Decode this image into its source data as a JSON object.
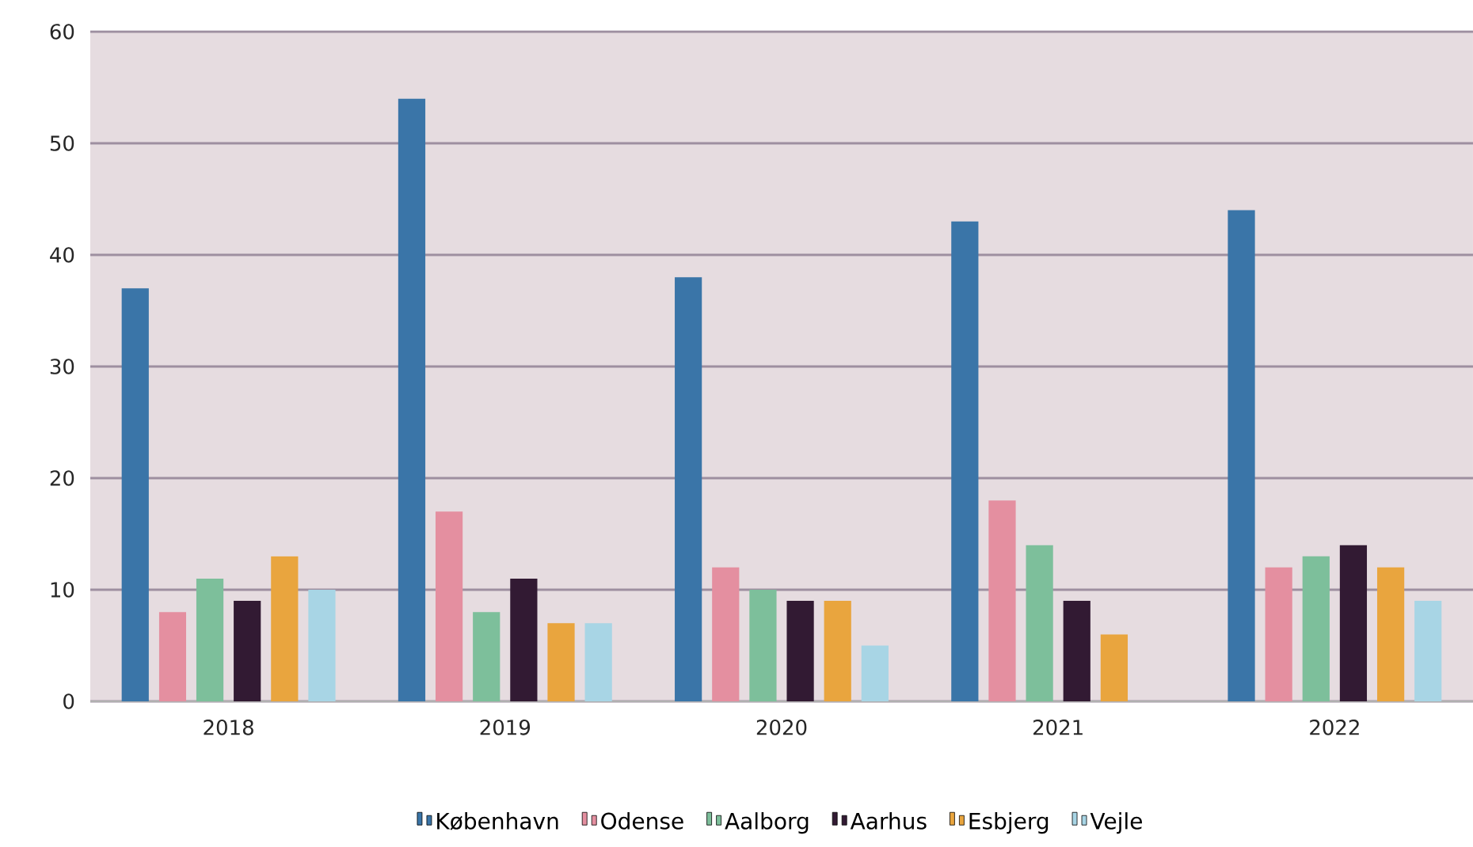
{
  "chart_data": {
    "type": "bar",
    "categories": [
      "2018",
      "2019",
      "2020",
      "2021",
      "2022"
    ],
    "series": [
      {
        "name": "København",
        "color": "#3a75a8",
        "values": [
          37,
          54,
          38,
          43,
          44
        ]
      },
      {
        "name": "Odense",
        "color": "#e48fa0",
        "values": [
          8,
          17,
          12,
          18,
          12
        ]
      },
      {
        "name": "Aalborg",
        "color": "#7dbf9b",
        "values": [
          11,
          8,
          10,
          14,
          13
        ]
      },
      {
        "name": "Aarhus",
        "color": "#321a33",
        "values": [
          9,
          11,
          9,
          9,
          14
        ]
      },
      {
        "name": "Esbjerg",
        "color": "#e9a53e",
        "values": [
          13,
          7,
          9,
          6,
          12
        ]
      },
      {
        "name": "Vejle",
        "color": "#a8d5e5",
        "values": [
          10,
          7,
          5,
          null,
          9
        ]
      }
    ],
    "ylim": [
      0,
      60
    ],
    "yticks": [
      0,
      10,
      20,
      30,
      40,
      50,
      60
    ],
    "grid": "y",
    "legend": "bottom"
  }
}
